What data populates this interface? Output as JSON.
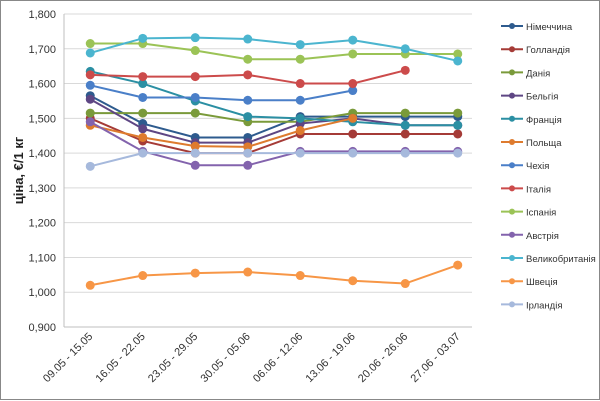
{
  "chart_data": {
    "type": "line",
    "title": "",
    "xlabel": "",
    "ylabel": "ціна, €/1 кг",
    "ylim": [
      900,
      1800
    ],
    "yticks": [
      "0,900",
      "1,000",
      "1,100",
      "1,200",
      "1,300",
      "1,400",
      "1,500",
      "1,600",
      "1,700",
      "1,800"
    ],
    "grid": true,
    "legend": "right",
    "categories": [
      "09.05 - 15.05",
      "16.05 - 22.05",
      "23.05 - 29.05",
      "30.05 - 05.06",
      "06.06 - 12.06",
      "13.06 - 19.06",
      "20.06 - 26.06",
      "27.06 - 03.07"
    ],
    "series": [
      {
        "name": "Німеччина",
        "color": "#2e5b8e",
        "values": [
          1565,
          1485,
          1445,
          1445,
          1505,
          1505,
          1505,
          1505
        ]
      },
      {
        "name": "Голландія",
        "color": "#a53b37",
        "values": [
          1500,
          1435,
          1400,
          1400,
          1455,
          1455,
          1455,
          1455
        ]
      },
      {
        "name": "Данія",
        "color": "#7a9a3a",
        "values": [
          1515,
          1515,
          1515,
          1490,
          1490,
          1515,
          1515,
          1515
        ]
      },
      {
        "name": "Бельгія",
        "color": "#5e4684",
        "values": [
          1555,
          1470,
          1430,
          1430,
          1485,
          1500,
          1480,
          1480
        ]
      },
      {
        "name": "Франція",
        "color": "#2b8fa3",
        "values": [
          1635,
          1600,
          1550,
          1505,
          1500,
          1490,
          1480,
          1480
        ]
      },
      {
        "name": "Польща",
        "color": "#de7b2e",
        "values": [
          1480,
          1445,
          1420,
          1418,
          1465,
          1500,
          null,
          null
        ]
      },
      {
        "name": "Чехія",
        "color": "#4a7fc8",
        "values": [
          1595,
          1560,
          1560,
          1552,
          1552,
          1580,
          null,
          null
        ]
      },
      {
        "name": "Італія",
        "color": "#cc4b4b",
        "values": [
          1625,
          1620,
          1620,
          1625,
          1600,
          1600,
          1638,
          null
        ]
      },
      {
        "name": "Іспанія",
        "color": "#9bc356",
        "values": [
          1715,
          1715,
          1695,
          1670,
          1670,
          1685,
          1685,
          1685
        ]
      },
      {
        "name": "Австрія",
        "color": "#8363ad",
        "values": [
          1490,
          1405,
          1365,
          1365,
          1405,
          1405,
          1405,
          1405
        ]
      },
      {
        "name": "Великобританія",
        "color": "#4bb5cf",
        "values": [
          1688,
          1730,
          1732,
          1728,
          1712,
          1725,
          1700,
          1665
        ]
      },
      {
        "name": "Швеція",
        "color": "#f79646",
        "values": [
          1020,
          1048,
          1055,
          1058,
          1048,
          1033,
          1025,
          1078
        ]
      },
      {
        "name": "Ірландія",
        "color": "#a6b9dc",
        "values": [
          1362,
          1400,
          1400,
          1400,
          1400,
          1400,
          1400,
          1400
        ]
      }
    ]
  }
}
